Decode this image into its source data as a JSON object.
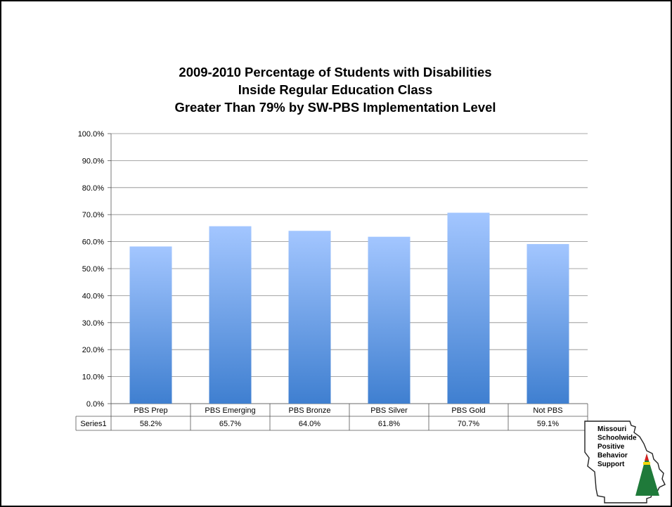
{
  "chart_data": {
    "type": "bar",
    "title_lines": [
      "2009-2010 Percentage of Students with Disabilities",
      "Inside Regular Education Class",
      "Greater Than 79% by SW-PBS Implementation Level"
    ],
    "categories": [
      "PBS Prep",
      "PBS Emerging",
      "PBS Bronze",
      "PBS Silver",
      "PBS Gold",
      "Not PBS"
    ],
    "series": [
      {
        "name": "Series1",
        "values": [
          58.2,
          65.7,
          64.0,
          61.8,
          70.7,
          59.1
        ],
        "labels": [
          "58.2%",
          "65.7%",
          "64.0%",
          "61.8%",
          "70.7%",
          "59.1%"
        ]
      }
    ],
    "ylim": [
      0,
      100
    ],
    "yticks": [
      "0.0%",
      "10.0%",
      "20.0%",
      "30.0%",
      "40.0%",
      "50.0%",
      "60.0%",
      "70.0%",
      "80.0%",
      "90.0%",
      "100.0%"
    ],
    "grid": true,
    "data_table": true,
    "colors": {
      "bar_top": "#a3c6ff",
      "bar_bottom": "#3f7fd0",
      "grid": "#8a8a8a"
    }
  },
  "logo": {
    "lines": [
      "Missouri",
      "Schoolwide",
      "Positive",
      "Behavior",
      "Support"
    ],
    "colors": {
      "triangle": "#1f7a3a",
      "accent_red": "#d42020",
      "accent_yellow": "#f5d90a"
    }
  }
}
